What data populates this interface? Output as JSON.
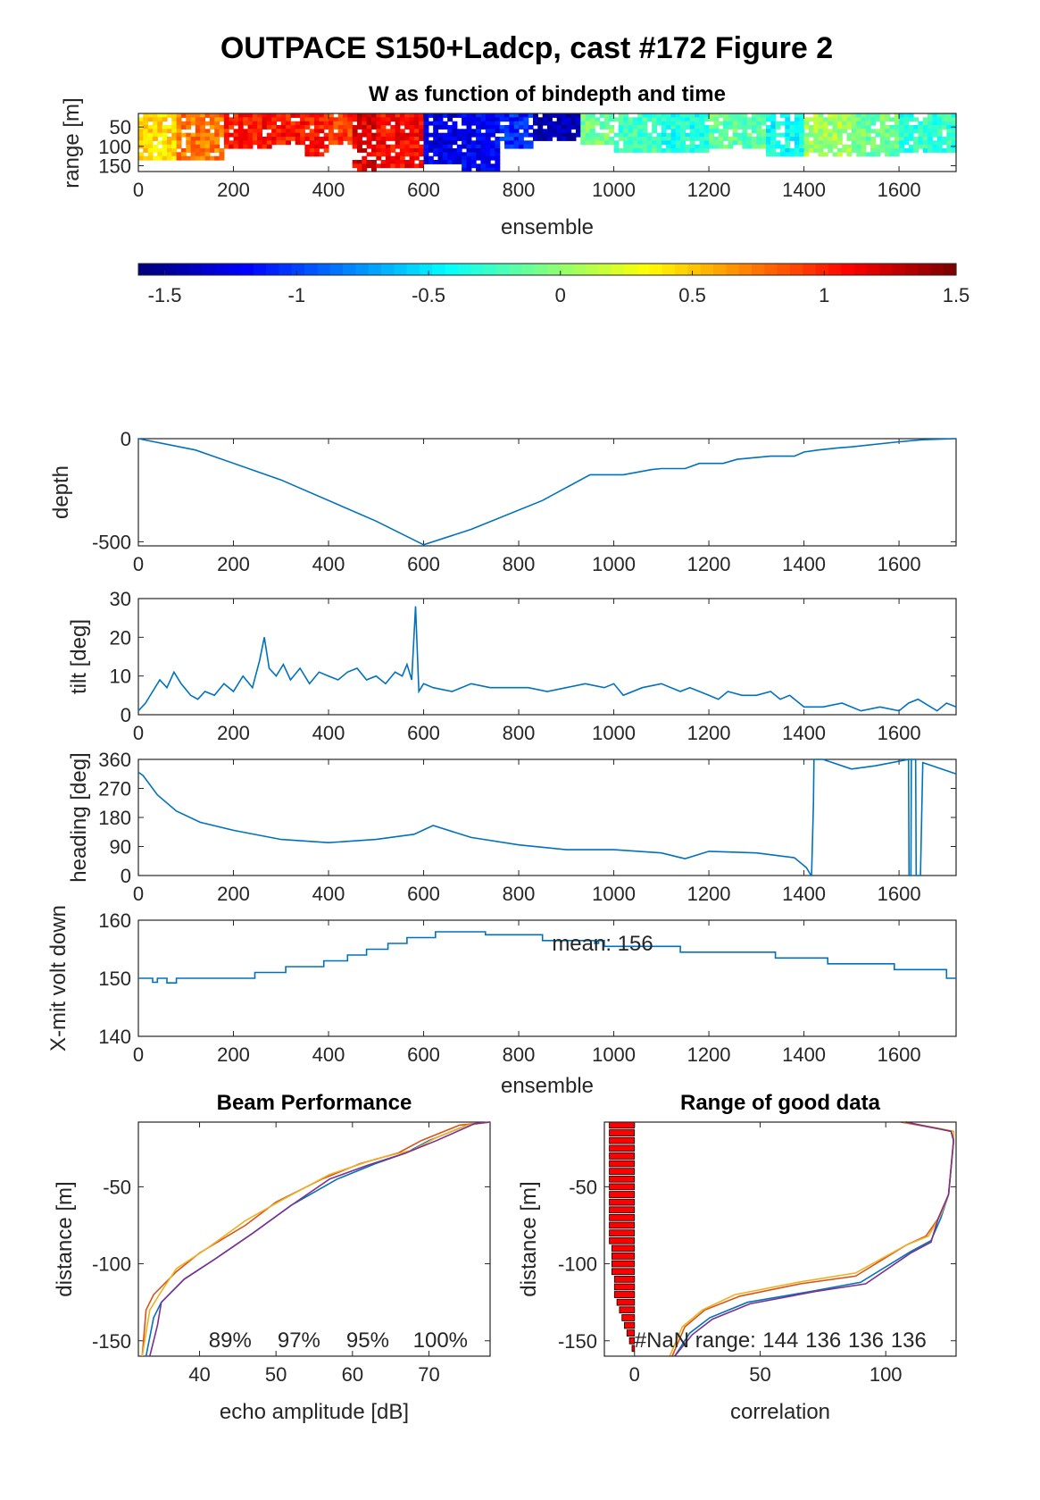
{
  "figure": {
    "title": "OUTPACE S150+Ladcp, cast #172 Figure 2",
    "accent_color": "#0072BD"
  },
  "chart_data": [
    {
      "id": "w_image",
      "type": "heatmap",
      "title": "W as function of bindepth and time",
      "xlabel": "ensemble",
      "ylabel": "range [m]",
      "xlim": [
        0,
        1720
      ],
      "ylim": [
        15,
        165
      ],
      "xticks": [
        0,
        200,
        400,
        600,
        800,
        1000,
        1200,
        1400,
        1600
      ],
      "yticks": [
        50,
        100,
        150
      ],
      "colormap": "jet",
      "colorbar": {
        "limits": [
          -1.6,
          1.5
        ],
        "ticks": [
          "-1.5",
          "-1",
          "-0.5",
          "0",
          "0.5",
          "1",
          "1.5"
        ]
      },
      "segments": [
        {
          "start": 0,
          "end": 80,
          "w": 0.45,
          "max_range": 135
        },
        {
          "start": 80,
          "end": 180,
          "w": 0.75,
          "max_range": 130
        },
        {
          "start": 180,
          "end": 280,
          "w": 1.05,
          "max_range": 105
        },
        {
          "start": 280,
          "end": 350,
          "w": 1.05,
          "max_range": 95
        },
        {
          "start": 350,
          "end": 400,
          "w": 1.05,
          "max_range": 120
        },
        {
          "start": 400,
          "end": 450,
          "w": 0.95,
          "max_range": 90
        },
        {
          "start": 450,
          "end": 500,
          "w": 1.2,
          "max_range": 165
        },
        {
          "start": 500,
          "end": 600,
          "w": 1.1,
          "max_range": 150
        },
        {
          "start": 600,
          "end": 680,
          "w": -1.3,
          "max_range": 145
        },
        {
          "start": 680,
          "end": 760,
          "w": -1.25,
          "max_range": 162
        },
        {
          "start": 760,
          "end": 830,
          "w": -1.1,
          "max_range": 105
        },
        {
          "start": 830,
          "end": 930,
          "w": -1.45,
          "max_range": 80
        },
        {
          "start": 930,
          "end": 1000,
          "w": -0.1,
          "max_range": 90
        },
        {
          "start": 1000,
          "end": 1100,
          "w": -0.25,
          "max_range": 115
        },
        {
          "start": 1100,
          "end": 1200,
          "w": -0.35,
          "max_range": 110
        },
        {
          "start": 1200,
          "end": 1320,
          "w": -0.15,
          "max_range": 105
        },
        {
          "start": 1320,
          "end": 1400,
          "w": -0.4,
          "max_range": 120
        },
        {
          "start": 1400,
          "end": 1500,
          "w": 0.05,
          "max_range": 125
        },
        {
          "start": 1500,
          "end": 1600,
          "w": -0.1,
          "max_range": 120
        },
        {
          "start": 1600,
          "end": 1720,
          "w": -0.3,
          "max_range": 115
        }
      ]
    },
    {
      "id": "depth",
      "type": "line",
      "xlabel": "",
      "ylabel": "depth",
      "xlim": [
        0,
        1720
      ],
      "ylim": [
        -520,
        0
      ],
      "xticks": [
        0,
        200,
        400,
        600,
        800,
        1000,
        1200,
        1400,
        1600
      ],
      "yticks": [
        -500,
        0
      ],
      "x": [
        0,
        120,
        300,
        500,
        600,
        700,
        850,
        950,
        1000,
        1020,
        1080,
        1100,
        1150,
        1180,
        1230,
        1260,
        1330,
        1380,
        1400,
        1430,
        1470,
        1500,
        1600,
        1650,
        1720
      ],
      "y": [
        0,
        -55,
        -200,
        -400,
        -515,
        -440,
        -300,
        -175,
        -175,
        -175,
        -150,
        -145,
        -145,
        -120,
        -120,
        -100,
        -85,
        -85,
        -65,
        -55,
        -45,
        -40,
        -15,
        -5,
        0
      ]
    },
    {
      "id": "tilt",
      "type": "line",
      "xlabel": "",
      "ylabel": "tilt [deg]",
      "xlim": [
        0,
        1720
      ],
      "ylim": [
        0,
        30
      ],
      "xticks": [
        0,
        200,
        400,
        600,
        800,
        1000,
        1200,
        1400,
        1600
      ],
      "yticks": [
        0,
        10,
        20,
        30
      ],
      "x": [
        0,
        15,
        30,
        45,
        60,
        75,
        90,
        110,
        125,
        140,
        160,
        180,
        200,
        220,
        240,
        255,
        265,
        275,
        290,
        305,
        320,
        340,
        360,
        380,
        400,
        420,
        440,
        460,
        480,
        500,
        520,
        540,
        555,
        565,
        575,
        583,
        590,
        600,
        620,
        660,
        700,
        740,
        780,
        820,
        860,
        900,
        940,
        980,
        1000,
        1020,
        1060,
        1100,
        1140,
        1160,
        1200,
        1220,
        1240,
        1270,
        1300,
        1330,
        1350,
        1370,
        1400,
        1440,
        1480,
        1520,
        1560,
        1600,
        1620,
        1640,
        1680,
        1700,
        1720
      ],
      "y": [
        1,
        3,
        6,
        9,
        7,
        11,
        8,
        5,
        4,
        6,
        5,
        8,
        6,
        10,
        7,
        14,
        20,
        12,
        10,
        13,
        9,
        12,
        8,
        11,
        10,
        9,
        11,
        12,
        9,
        10,
        8,
        11,
        10,
        13,
        9,
        28,
        6,
        8,
        7,
        6,
        8,
        7,
        7,
        7,
        6,
        7,
        8,
        7,
        8,
        5,
        7,
        8,
        6,
        7,
        5,
        4,
        6,
        5,
        5,
        6,
        4,
        5,
        2,
        2,
        3,
        1,
        2,
        1,
        3,
        4,
        1,
        3,
        2
      ]
    },
    {
      "id": "heading",
      "type": "line",
      "xlabel": "",
      "ylabel": "heading [deg]",
      "xlim": [
        0,
        1720
      ],
      "ylim": [
        0,
        360
      ],
      "xticks": [
        0,
        200,
        400,
        600,
        800,
        1000,
        1200,
        1400,
        1600
      ],
      "yticks": [
        0,
        90,
        180,
        270,
        360
      ],
      "x": [
        0,
        10,
        40,
        80,
        130,
        200,
        300,
        400,
        500,
        580,
        620,
        700,
        800,
        900,
        1000,
        1100,
        1150,
        1200,
        1300,
        1380,
        1405,
        1415,
        1416,
        1420,
        1421,
        1440,
        1500,
        1550,
        1620,
        1621,
        1625,
        1626,
        1635,
        1636,
        1645,
        1650,
        1700,
        1720
      ],
      "y": [
        320,
        310,
        250,
        200,
        165,
        140,
        112,
        102,
        112,
        128,
        155,
        118,
        95,
        80,
        80,
        70,
        52,
        75,
        70,
        55,
        25,
        0,
        0,
        220,
        360,
        360,
        330,
        340,
        360,
        0,
        0,
        360,
        360,
        0,
        0,
        350,
        325,
        315
      ]
    },
    {
      "id": "xmit",
      "type": "line",
      "xlabel": "ensemble",
      "ylabel": "X-mit volt down",
      "xlim": [
        0,
        1720
      ],
      "ylim": [
        140,
        160
      ],
      "xticks": [
        0,
        200,
        400,
        600,
        800,
        1000,
        1200,
        1400,
        1600
      ],
      "yticks": [
        140,
        150,
        160
      ],
      "annotation": "mean: 156",
      "x": [
        0,
        30,
        30,
        40,
        40,
        60,
        60,
        80,
        80,
        245,
        245,
        310,
        310,
        390,
        390,
        440,
        440,
        480,
        480,
        525,
        525,
        565,
        565,
        625,
        625,
        730,
        730,
        850,
        850,
        960,
        960,
        968,
        968,
        980,
        980,
        1140,
        1140,
        1340,
        1340,
        1450,
        1450,
        1590,
        1590,
        1700,
        1700,
        1720
      ],
      "y": [
        150,
        150,
        149.3,
        149.3,
        150,
        150,
        149.2,
        149.2,
        150,
        150,
        151,
        151,
        152,
        152,
        153,
        153,
        154,
        154,
        155,
        155,
        156,
        156,
        157,
        157,
        158,
        158,
        157.5,
        157.5,
        156.5,
        156.5,
        156,
        156,
        156.5,
        156.5,
        155.5,
        155.5,
        154.5,
        154.5,
        153.5,
        153.5,
        152.5,
        152.5,
        151.5,
        151.5,
        150,
        150
      ]
    },
    {
      "id": "beam_performance",
      "type": "line",
      "title": "Beam Performance",
      "xlabel": "echo amplitude [dB]",
      "ylabel": "distance [m]",
      "xlim": [
        32,
        78
      ],
      "ylim": [
        -160,
        -8
      ],
      "xticks": [
        40,
        50,
        60,
        70
      ],
      "yticks": [
        -50,
        -100,
        -150
      ],
      "beam_percent_labels": [
        "89%",
        "97%",
        "95%",
        "100%"
      ],
      "series": [
        {
          "color": "#0072BD",
          "x": [
            78,
            75,
            70,
            67,
            63,
            58,
            52,
            47,
            42,
            38,
            35,
            34,
            33
          ],
          "y": [
            -8,
            -10,
            -20,
            -28,
            -35,
            -45,
            -62,
            -80,
            -97,
            -110,
            -125,
            -135,
            -160
          ]
        },
        {
          "color": "#D95319",
          "x": [
            78,
            74,
            69,
            66,
            61,
            56,
            50,
            46,
            40,
            37,
            34,
            33,
            32.5
          ],
          "y": [
            -8,
            -10,
            -20,
            -28,
            -35,
            -45,
            -60,
            -75,
            -93,
            -105,
            -120,
            -130,
            -160
          ]
        },
        {
          "color": "#EDB120",
          "x": [
            78,
            75,
            71,
            68,
            63,
            57,
            51,
            46,
            41,
            37,
            35,
            33.5,
            32.5
          ],
          "y": [
            -8,
            -10,
            -18,
            -26,
            -32,
            -42,
            -58,
            -72,
            -90,
            -103,
            -118,
            -130,
            -160
          ]
        },
        {
          "color": "#7E2F8E",
          "x": [
            78,
            76,
            71,
            67,
            62,
            57,
            52,
            47,
            42,
            38,
            35,
            34.5,
            33.5
          ],
          "y": [
            -8,
            -9,
            -20,
            -28,
            -36,
            -45,
            -62,
            -80,
            -97,
            -110,
            -125,
            -140,
            -160
          ]
        }
      ]
    },
    {
      "id": "range_good_data",
      "type": "line",
      "title": "Range of good data",
      "xlabel": "correlation",
      "ylabel": "distance [m]",
      "xlim": [
        -12,
        128
      ],
      "ylim": [
        -160,
        -8
      ],
      "xticks": [
        0,
        50,
        100
      ],
      "yticks": [
        -50,
        -100,
        -150
      ],
      "annotation_label": "#NaN range:",
      "annotation_values": [
        "144",
        "136",
        "136",
        "136"
      ],
      "nan_bars": [
        {
          "depth": -10,
          "value": 10
        },
        {
          "depth": -15,
          "value": 10
        },
        {
          "depth": -20,
          "value": 10
        },
        {
          "depth": -25,
          "value": 10
        },
        {
          "depth": -30,
          "value": 10
        },
        {
          "depth": -35,
          "value": 10
        },
        {
          "depth": -40,
          "value": 10
        },
        {
          "depth": -45,
          "value": 10
        },
        {
          "depth": -50,
          "value": 10
        },
        {
          "depth": -55,
          "value": 10
        },
        {
          "depth": -60,
          "value": 10
        },
        {
          "depth": -65,
          "value": 10
        },
        {
          "depth": -70,
          "value": 10
        },
        {
          "depth": -75,
          "value": 10
        },
        {
          "depth": -80,
          "value": 10
        },
        {
          "depth": -85,
          "value": 10
        },
        {
          "depth": -90,
          "value": 9
        },
        {
          "depth": -95,
          "value": 9
        },
        {
          "depth": -100,
          "value": 9
        },
        {
          "depth": -105,
          "value": 9
        },
        {
          "depth": -110,
          "value": 8
        },
        {
          "depth": -115,
          "value": 8
        },
        {
          "depth": -120,
          "value": 8
        },
        {
          "depth": -125,
          "value": 7
        },
        {
          "depth": -130,
          "value": 6
        },
        {
          "depth": -135,
          "value": 5
        },
        {
          "depth": -140,
          "value": 4
        },
        {
          "depth": -145,
          "value": 3
        },
        {
          "depth": -150,
          "value": 2
        },
        {
          "depth": -155,
          "value": 1
        }
      ],
      "series": [
        {
          "color": "#0072BD",
          "x": [
            108,
            120,
            126,
            127,
            125,
            122,
            118,
            110,
            90,
            70,
            45,
            30,
            22,
            16
          ],
          "y": [
            -8,
            -12,
            -14,
            -20,
            -55,
            -70,
            -85,
            -92,
            -112,
            -118,
            -125,
            -135,
            -145,
            -160
          ]
        },
        {
          "color": "#D95319",
          "x": [
            106,
            120,
            126,
            127,
            125,
            122,
            116,
            108,
            88,
            66,
            42,
            28,
            20,
            15
          ],
          "y": [
            -8,
            -12,
            -14,
            -20,
            -55,
            -68,
            -82,
            -88,
            -108,
            -113,
            -121,
            -130,
            -141,
            -160
          ]
        },
        {
          "color": "#EDB120",
          "x": [
            107,
            121,
            127,
            127,
            125,
            122,
            117,
            108,
            88,
            65,
            40,
            27,
            19,
            14
          ],
          "y": [
            -8,
            -12,
            -14,
            -20,
            -55,
            -68,
            -82,
            -88,
            -106,
            -112,
            -120,
            -130,
            -141,
            -160
          ]
        },
        {
          "color": "#7E2F8E",
          "x": [
            108,
            120,
            126,
            127,
            125,
            121,
            118,
            110,
            92,
            72,
            46,
            31,
            23,
            16
          ],
          "y": [
            -8,
            -12,
            -14,
            -20,
            -55,
            -70,
            -86,
            -93,
            -113,
            -118,
            -126,
            -136,
            -146,
            -160
          ]
        }
      ]
    }
  ]
}
